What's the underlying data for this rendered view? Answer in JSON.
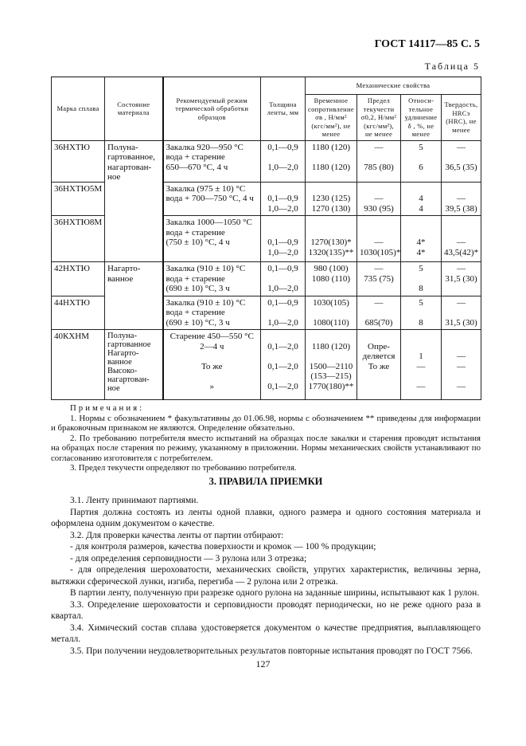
{
  "header": {
    "doc_ref": "ГОСТ 14117—85 С. 5",
    "table_caption": "Таблица 5"
  },
  "table": {
    "headers": {
      "mark": "Марка сплава",
      "state": "Состояние материала",
      "regime": "Рекомендуемый режим термической обработки образцов",
      "thickness": "Толщина ленты, мм",
      "mech": "Механические свойства",
      "tensile": "Временное сопротивление σв , Н/мм² (кгс/мм²), не менее",
      "yield": "Предел текучести σ0,2, Н/мм² (кгс/мм²), не менее",
      "elong": "Относи­тельное удлинение δ , %, не менее",
      "hard": "Твердость, HRCэ (HRC), не менее"
    },
    "rows": [
      {
        "mark": "36НХТЮ",
        "state": "Полуна-\nгартованное,\nнагартован-\nное",
        "regime": "    Закалка 920—950 °С\nвода + старение\n650—670 °С, 4 ч",
        "thickness": "0,1—0,9\n\n1,0—2,0",
        "tensile": "1180  (120)\n\n1180  (120)",
        "yield": "—\n\n785 (80)",
        "elong": "5\n\n6",
        "hard": "—\n\n36,5 (35)"
      },
      {
        "mark": "36НХТЮ5М",
        "regime": "    Закалка (975 ± 10) °С\nвода +  700—750 °С, 4 ч",
        "thickness": "\n0,1—0,9\n1,0—2,0",
        "tensile": "\n1230  (125)\n1270  (130)",
        "yield": "\n—\n930  (95)",
        "elong": "\n4\n4",
        "hard": "\n—\n39,5 (38)"
      },
      {
        "mark": "36НХТЮ8М",
        "regime": "    Закалка 1000—1050 °С\nвода + старение\n(750 ± 10) °С, 4 ч",
        "thickness": "\n\n0,1—0,9\n1,0—2,0",
        "tensile": "\n\n1270(130)*\n1320(135)**",
        "yield": "\n\n—\n1030(105)*",
        "elong": "\n\n4*\n4*",
        "hard": "\n\n—\n43,5(42)*"
      },
      {
        "mark": "42НХТЮ",
        "state": "    Нагарто-\nванное",
        "regime": "    Закалка (910 ± 10) °С\nвода + старение\n(690 ± 10) °С, 3 ч",
        "thickness": "0,1—0,9\n\n1,0—2,0",
        "tensile": "980  (100)\n1080  (110)",
        "yield": "—\n735 (75)",
        "elong": "5\n\n8",
        "hard": "—\n31,5 (30)"
      },
      {
        "mark": "44НХТЮ",
        "regime": "    Закалка (910 ± 10) °С\nвода + старение\n(690 ± 10) °С, 3 ч",
        "thickness": "0,1—0,9\n\n1,0—2,0",
        "tensile": "1030(105)\n\n1080(110)",
        "yield": "—\n\n685(70)",
        "elong": "5\n\n8",
        "hard": "—\n\n31,5 (30)"
      },
      {
        "mark": "40КХНМ",
        "state": "    Полуна-\nгартованное\n    Нагарто-\nванное\n    Высоко-\nнагартован-\nное",
        "regime": "    Старение 450—550 °С\n2—4 ч\n\nТо же\n\n»",
        "thickness": "\n0,1—2,0\n\n0,1—2,0\n\n0,1—2,0",
        "tensile": "\n1180  (120)\n\n1500—2110\n(153—215)\n1770(180)**",
        "yield": "\nОпре-\nделяется\nТо же",
        "elong": "\n\n1\n—\n\n—",
        "hard": "\n\n—\n—\n\n—"
      }
    ]
  },
  "notes": {
    "title": "Примечания:",
    "items": [
      "1. Нормы с обозначением * факультативны до 01.06.98, нормы с обозначением ** приведены для информации и браковочным признаком не являются. Определение обязательно.",
      "2. По требованию потребителя вместо испытаний на образцах после закалки и старения проводят испытания на образцах после старения по режиму, указанному в  приложении. Нормы механических свойств устанавливают по согласованию изготовителя с потребителем.",
      "3. Предел текучести определяют по требованию потребителя."
    ]
  },
  "section": {
    "title": "3. ПРАВИЛА ПРИЕМКИ",
    "paragraphs": [
      "3.1. Ленту принимают партиями.",
      "Партия должна состоять из ленты одной плавки, одного размера и одного состояния материала и оформлена одним документом о качестве.",
      "3.2. Для проверки качества ленты от партии отбирают:",
      "- для контроля размеров, качества поверхности и кромок — 100 % продукции;",
      "- для определения серповидности — 3 рулона или 3 отрезка;",
      "- для определения шероховатости, механических свойств, упругих характеристик, величины зерна, вытяжки сферической лунки, изгиба, перегиба — 2 рулона или 2 отрезка.",
      "В партии ленту, полученную при разрезке одного рулона на заданные ширины, испытывают как 1 рулон.",
      "3.3. Определение шероховатости и серповидности проводят периодически, но не реже одного раза в квартал.",
      "3.4. Химический состав сплава удостоверяется документом о качестве предприятия, выплавляющего металл.",
      "3.5. При получении неудовлетворительных результатов повторные испытания проводят по ГОСТ 7566."
    ]
  },
  "page_number": "127"
}
